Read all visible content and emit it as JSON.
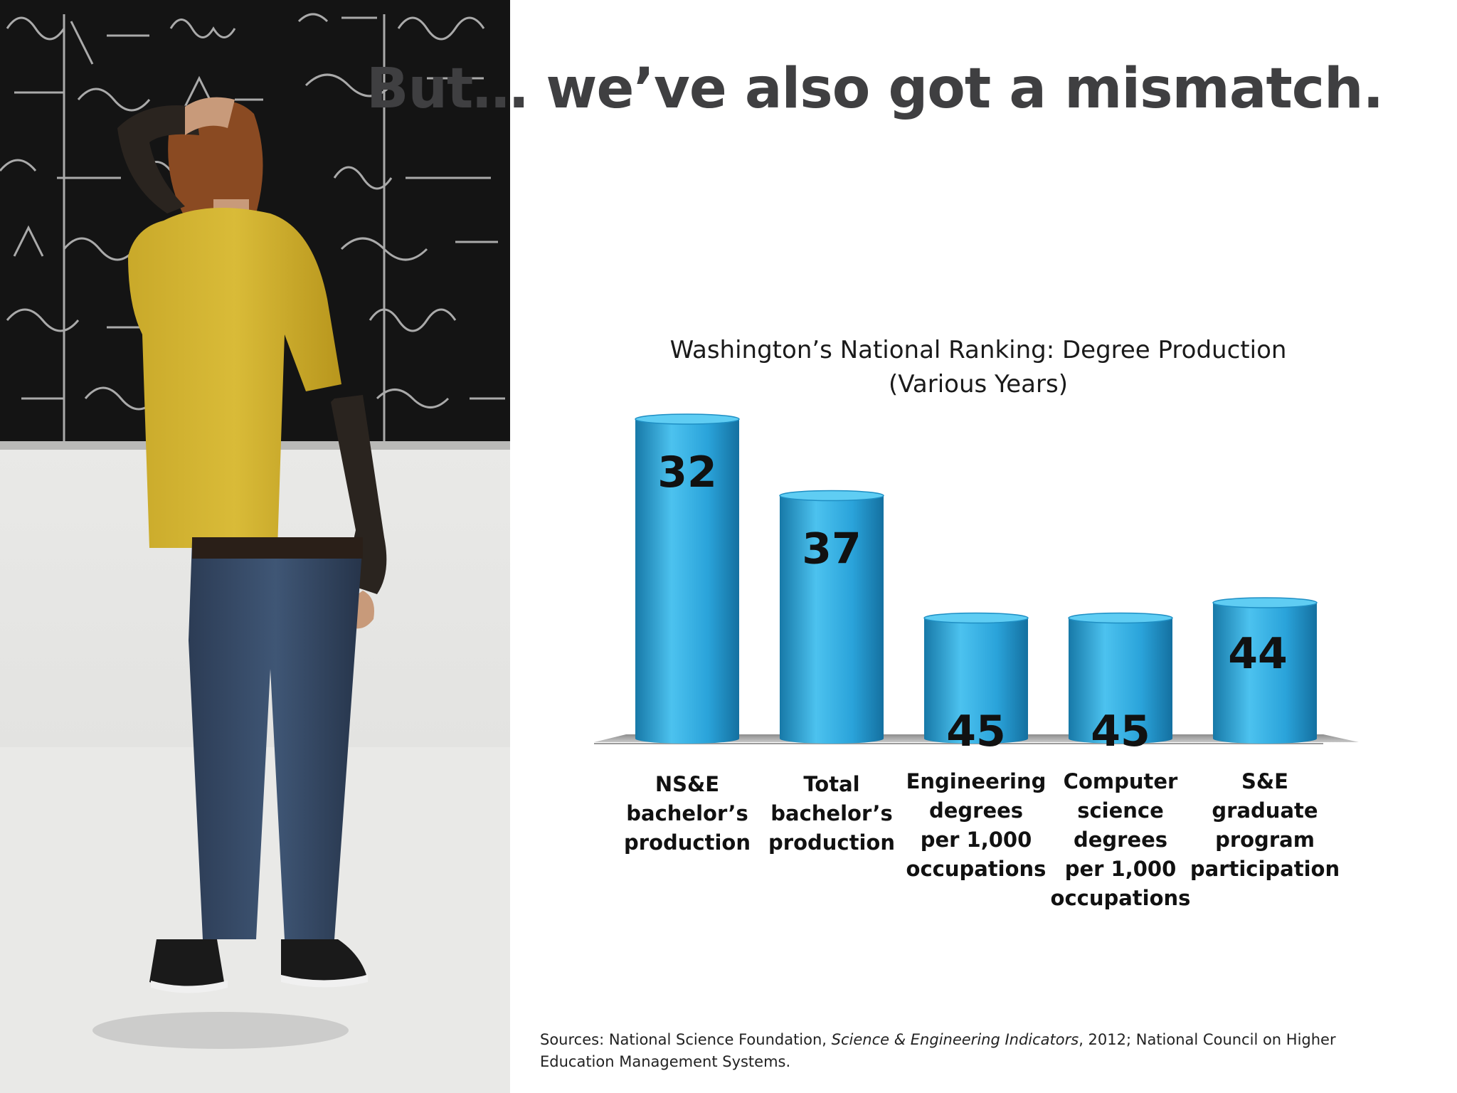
{
  "slide": {
    "title": "But… we’ve also got a mismatch."
  },
  "chart_data": {
    "type": "bar",
    "title": "Washington’s National Ranking: Degree Production",
    "subtitle": "(Various Years)",
    "categories": [
      "NS&E bachelor’s production",
      "Total bachelor’s production",
      "Engineering degrees per 1,000 occupations",
      "Computer science degrees per 1,000 occupations",
      "S&E graduate program participation"
    ],
    "category_lines": [
      [
        "NS&E",
        "bachelor’s",
        "production"
      ],
      [
        "Total",
        "bachelor’s",
        "production"
      ],
      [
        "Engineering",
        "degrees",
        "per 1,000",
        "occupations"
      ],
      [
        "Computer",
        "science degrees",
        "per 1,000",
        "occupations"
      ],
      [
        "S&E graduate",
        "program",
        "participation"
      ]
    ],
    "values": [
      32,
      37,
      45,
      45,
      44
    ],
    "value_labels": [
      "32",
      "37",
      "45",
      "45",
      "44"
    ],
    "y_axis": "ranking (lower value = taller bar)",
    "y_range": [
      50,
      20
    ],
    "bar_style": "3d-cylinder",
    "bar_color": "#2aa3da",
    "grid": false,
    "legend": "none"
  },
  "sources": {
    "prefix": "Sources:  National Science Foundation, ",
    "italic": "Science & Engineering Indicators",
    "suffix": ", 2012; National Council on Higher Education Management Systems."
  }
}
